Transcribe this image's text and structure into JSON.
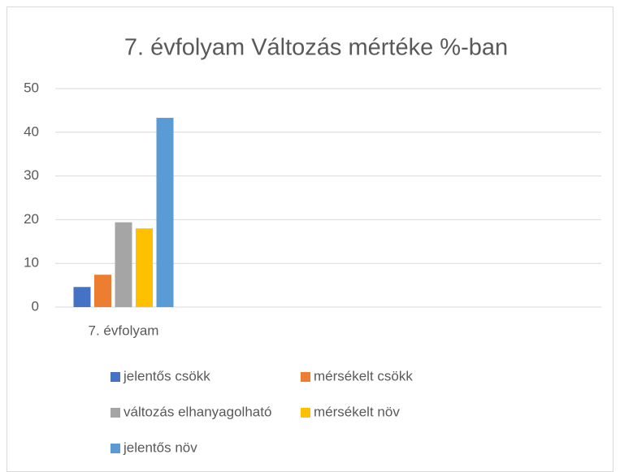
{
  "chart_data": {
    "type": "bar",
    "title": "7. évfolyam Változás mértéke %-ban",
    "categories": [
      "7. évfolyam",
      null,
      null,
      null
    ],
    "series": [
      {
        "name": "jelentős csökk",
        "color": "#4472c4",
        "values": [
          4.6,
          null,
          null,
          null
        ]
      },
      {
        "name": "mérsékelt csökk",
        "color": "#ed7d31",
        "values": [
          7.4,
          null,
          null,
          null
        ]
      },
      {
        "name": "változás elhanyagolható",
        "color": "#a5a5a5",
        "values": [
          19.4,
          null,
          null,
          null
        ]
      },
      {
        "name": "mérsékelt növ",
        "color": "#ffc000",
        "values": [
          18.0,
          null,
          null,
          null
        ]
      },
      {
        "name": "jelentős növ",
        "color": "#5b9bd5",
        "values": [
          43.3,
          null,
          null,
          null
        ]
      }
    ],
    "ylim": [
      0,
      50
    ],
    "yticks": [
      0,
      10,
      20,
      30,
      40,
      50
    ],
    "grid": true,
    "legend": "bottom"
  }
}
